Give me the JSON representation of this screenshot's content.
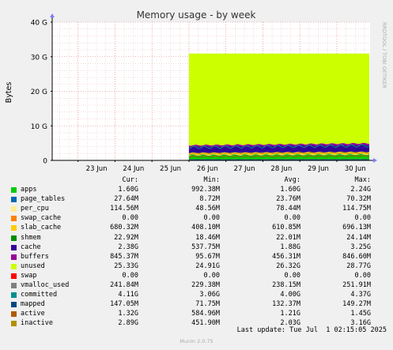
{
  "colors": {
    "background": "#f0f0f0",
    "canvas": "#ffffff",
    "grid_major": "#e07070",
    "grid_minor": "#e8b8b8",
    "axis": "#000000",
    "watermark": "#aaaaaa",
    "arrow": "#7f7fff"
  },
  "chart_data": {
    "type": "area",
    "title": "Memory usage - by week",
    "ylabel": "Bytes",
    "watermark": "RRDTOOL / TOBI OETIKER",
    "ylim": [
      0,
      40
    ],
    "y_unit": "G",
    "y_ticks": [
      {
        "value": 0,
        "label": "0"
      },
      {
        "value": 10,
        "label": "10 G"
      },
      {
        "value": 20,
        "label": "20 G"
      },
      {
        "value": 30,
        "label": "30 G"
      },
      {
        "value": 40,
        "label": "40 G"
      }
    ],
    "x_ticks": [
      "23 Jun",
      "24 Jun",
      "25 Jun",
      "26 Jun",
      "27 Jun",
      "28 Jun",
      "29 Jun",
      "30 Jun"
    ],
    "xlim_days": [
      22.3,
      30.9
    ],
    "data_start_day": 26.0,
    "grid": true,
    "stack_order_bottom_to_top": [
      "apps",
      "page_tables",
      "per_cpu",
      "swap_cache",
      "slab_cache",
      "shmem",
      "cache",
      "buffers",
      "unused",
      "swap"
    ],
    "lines": [
      "vmalloc_used",
      "committed",
      "mapped",
      "active",
      "inactive"
    ],
    "series_avg_G": {
      "apps": 1.6,
      "page_tables": 0.0237,
      "per_cpu": 0.0784,
      "swap_cache": 0,
      "slab_cache": 0.611,
      "shmem": 0.022,
      "cache": 1.88,
      "buffers": 0.456,
      "unused": 26.32,
      "swap": 0,
      "vmalloc_used": 0.238,
      "committed": 4.0,
      "mapped": 0.132,
      "active": 1.21,
      "inactive": 2.03
    }
  },
  "legend": {
    "headers": {
      "cur": "Cur:",
      "min": "Min:",
      "avg": "Avg:",
      "max": "Max:"
    },
    "rows": [
      {
        "name": "apps",
        "color": "#00cc00",
        "cur": "1.60G",
        "min": "992.38M",
        "avg": "1.60G",
        "max": "2.24G"
      },
      {
        "name": "page_tables",
        "color": "#0066b3",
        "cur": "27.64M",
        "min": "8.72M",
        "avg": "23.76M",
        "max": "70.32M"
      },
      {
        "name": "per_cpu",
        "color": "#ffec8b",
        "cur": "114.56M",
        "min": "48.56M",
        "avg": "78.44M",
        "max": "114.75M"
      },
      {
        "name": "swap_cache",
        "color": "#ff8000",
        "cur": "0.00",
        "min": "0.00",
        "avg": "0.00",
        "max": "0.00"
      },
      {
        "name": "slab_cache",
        "color": "#ffcc00",
        "cur": "680.32M",
        "min": "408.10M",
        "avg": "610.85M",
        "max": "696.13M"
      },
      {
        "name": "shmem",
        "color": "#008f00",
        "cur": "22.92M",
        "min": "18.46M",
        "avg": "22.01M",
        "max": "24.14M"
      },
      {
        "name": "cache",
        "color": "#330099",
        "cur": "2.38G",
        "min": "537.75M",
        "avg": "1.88G",
        "max": "3.25G"
      },
      {
        "name": "buffers",
        "color": "#990099",
        "cur": "845.37M",
        "min": "95.67M",
        "avg": "456.31M",
        "max": "846.60M"
      },
      {
        "name": "unused",
        "color": "#ccff00",
        "cur": "25.33G",
        "min": "24.91G",
        "avg": "26.32G",
        "max": "28.77G"
      },
      {
        "name": "swap",
        "color": "#ff0000",
        "cur": "0.00",
        "min": "0.00",
        "avg": "0.00",
        "max": "0.00"
      },
      {
        "name": "vmalloc_used",
        "color": "#808080",
        "cur": "241.84M",
        "min": "229.38M",
        "avg": "238.15M",
        "max": "251.91M"
      },
      {
        "name": "committed",
        "color": "#008f8f",
        "cur": "4.11G",
        "min": "3.06G",
        "avg": "4.00G",
        "max": "4.37G"
      },
      {
        "name": "mapped",
        "color": "#00487d",
        "cur": "147.05M",
        "min": "71.75M",
        "avg": "132.37M",
        "max": "149.27M"
      },
      {
        "name": "active",
        "color": "#b35a00",
        "cur": "1.32G",
        "min": "584.96M",
        "avg": "1.21G",
        "max": "1.45G"
      },
      {
        "name": "inactive",
        "color": "#b38f00",
        "cur": "2.89G",
        "min": "451.90M",
        "avg": "2.03G",
        "max": "3.16G"
      }
    ]
  },
  "footer": {
    "last_update": "Last update: Tue Jul  1 02:15:05 2025",
    "munin_version": "Munin 2.0.75"
  }
}
